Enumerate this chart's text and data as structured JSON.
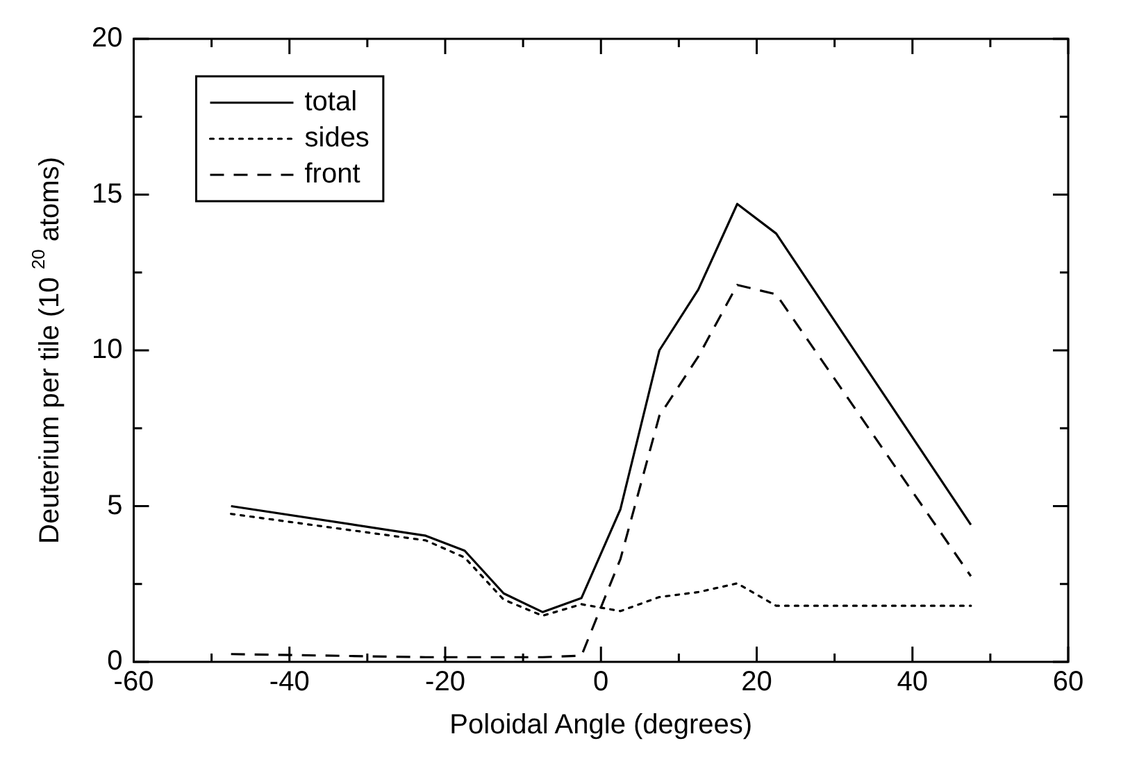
{
  "chart_data": {
    "type": "line",
    "xlabel": "Poloidal Angle (degrees)",
    "ylabel": "Deuterium per tile (10 $^{20}$ atoms)",
    "x": [
      -47.5,
      -22.5,
      -17.5,
      -12.5,
      -7.5,
      -2.5,
      2.5,
      7.5,
      12.5,
      17.5,
      22.5,
      47.5
    ],
    "series": [
      {
        "name": "total",
        "color": "#000000",
        "line_style": "solid",
        "values": [
          5.0,
          4.05,
          3.57,
          2.2,
          1.6,
          2.05,
          4.9,
          10.0,
          11.95,
          14.7,
          13.75,
          4.4
        ]
      },
      {
        "name": "sides",
        "color": "#000000",
        "line_style": "dotted",
        "values": [
          4.75,
          3.9,
          3.35,
          2.0,
          1.48,
          1.85,
          1.63,
          2.08,
          2.24,
          2.52,
          1.8,
          1.8
        ]
      },
      {
        "name": "front",
        "color": "#000000",
        "line_style": "dashed",
        "values": [
          0.25,
          0.15,
          0.15,
          0.15,
          0.15,
          0.2,
          3.3,
          7.9,
          9.8,
          12.1,
          11.8,
          2.75
        ]
      }
    ],
    "xlim": [
      -60,
      60
    ],
    "xticks": [
      -60,
      {
        "value": -50,
        "label": null
      },
      -40,
      {
        "value": -30,
        "label": null
      },
      -20,
      {
        "value": -10,
        "label": null
      },
      0,
      {
        "value": 10,
        "label": null
      },
      20,
      {
        "value": 30,
        "label": null
      },
      40,
      {
        "value": 50,
        "label": null
      },
      60
    ],
    "ylim": [
      0,
      20
    ],
    "yticks": [
      0,
      {
        "value": 2.5,
        "label": null
      },
      5,
      {
        "value": 7.5,
        "label": null
      },
      10,
      {
        "value": 12.5,
        "label": null
      },
      15,
      {
        "value": 17.5,
        "label": null
      },
      20
    ],
    "grid": false,
    "legend": "top left",
    "marker": "none"
  }
}
